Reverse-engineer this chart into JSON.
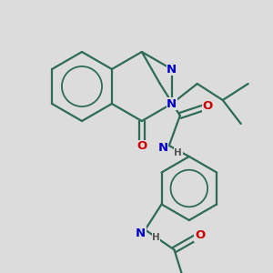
{
  "bg_color": "#dcdcdc",
  "bond_color": "#2d6b55",
  "bond_width": 1.6,
  "atom_colors": {
    "N": "#0000cc",
    "O": "#cc0000",
    "H": "#555555"
  },
  "font_size": 8.5
}
